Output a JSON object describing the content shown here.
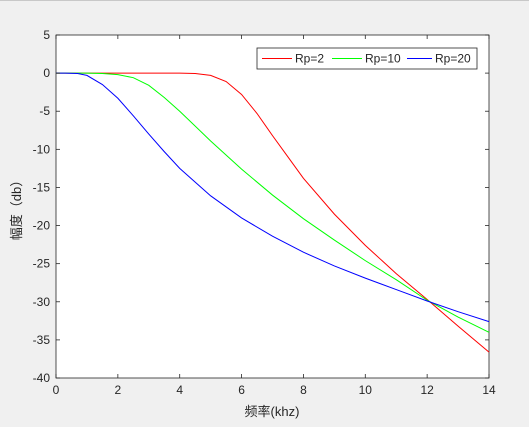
{
  "colors": {
    "figure_background": "#f0f0f0",
    "axes_background": "#ffffff",
    "axes_edge": "#262626",
    "tick_text": "#262626"
  },
  "chart_data": {
    "type": "line",
    "title": "",
    "xlabel": "频率(khz)",
    "ylabel": "幅度（db）",
    "xlim": [
      0,
      14
    ],
    "ylim": [
      -40,
      5
    ],
    "xticks": [
      0,
      2,
      4,
      6,
      8,
      10,
      12,
      14
    ],
    "yticks": [
      5,
      0,
      -5,
      -10,
      -15,
      -20,
      -25,
      -30,
      -35,
      -40
    ],
    "grid": false,
    "legend_position": "top-right",
    "series": [
      {
        "name": "Rp=2",
        "color": "#ff0000",
        "x": [
          0,
          0.5,
          1,
          2,
          3,
          4,
          4.5,
          5,
          5.5,
          6,
          6.5,
          7,
          7.5,
          8,
          9,
          10,
          11,
          12,
          13,
          14
        ],
        "y": [
          0,
          0,
          0,
          0,
          0,
          0,
          -0.05,
          -0.3,
          -1.1,
          -2.8,
          -5.3,
          -8.2,
          -11.0,
          -13.8,
          -18.5,
          -22.6,
          -26.3,
          -29.7,
          -33.2,
          -36.6
        ]
      },
      {
        "name": "Rp=10",
        "color": "#00ff00",
        "x": [
          0,
          0.5,
          1,
          1.5,
          2,
          2.5,
          3,
          3.5,
          4,
          5,
          6,
          7,
          8,
          9,
          10,
          11,
          12,
          13,
          14
        ],
        "y": [
          0,
          0,
          0,
          -0.05,
          -0.2,
          -0.6,
          -1.6,
          -3.2,
          -5.0,
          -8.9,
          -12.6,
          -16.0,
          -19.1,
          -21.9,
          -24.6,
          -27.1,
          -29.8,
          -32.0,
          -34.0
        ]
      },
      {
        "name": "Rp=20",
        "color": "#0000ff",
        "x": [
          0,
          0.3,
          0.7,
          1,
          1.5,
          2,
          2.5,
          3,
          3.5,
          4,
          5,
          6,
          7,
          8,
          9,
          10,
          11,
          12,
          13,
          14
        ],
        "y": [
          0,
          0,
          -0.05,
          -0.3,
          -1.5,
          -3.3,
          -5.6,
          -8.0,
          -10.3,
          -12.5,
          -16.1,
          -19.0,
          -21.4,
          -23.5,
          -25.3,
          -26.9,
          -28.4,
          -29.9,
          -31.3,
          -32.6
        ]
      }
    ]
  }
}
